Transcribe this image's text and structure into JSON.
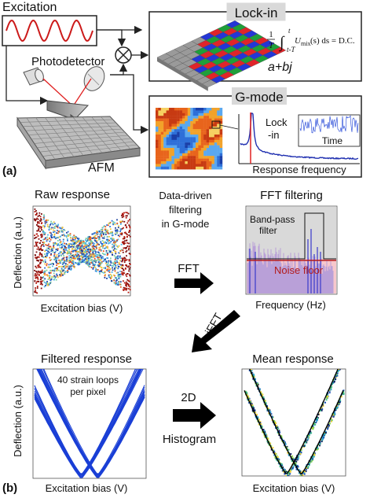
{
  "panel_a": {
    "label": "(a)",
    "excitation": "Excitation",
    "photodetector": "Photodetector",
    "mixer_symbol": "⊗",
    "afm": "AFM",
    "lockin": {
      "title": "Lock-in",
      "frac_num": "1",
      "frac_den": "T",
      "int_upper": "t",
      "int_lower": "t-T",
      "integrand": "U",
      "integrand_sub": "mix",
      "integrand_tail": "(s) ds = D.C.",
      "complex": "a+bj"
    },
    "gmode": {
      "title": "G-mode",
      "lockin_label_1": "Lock",
      "lockin_label_2": "-in",
      "time": "Time",
      "response_frequency": "Response frequency"
    }
  },
  "panel_b": {
    "label": "(b)",
    "raw": {
      "title": "Raw response",
      "xlabel": "Excitation bias (V)",
      "ylabel": "Deflection (a.u.)"
    },
    "center_text": [
      "Data-driven",
      "filtering",
      "in G-mode"
    ],
    "fft_arrow": "FFT",
    "ifft_arrow": "iFFT",
    "fft_filter": {
      "title": "FFT filtering",
      "bandpass_1": "Band-pass",
      "bandpass_2": "filter",
      "noise_floor": "Noise floor",
      "xlabel": "Frequency (Hz)"
    },
    "filtered": {
      "title": "Filtered response",
      "note_1": "40 strain loops",
      "note_2": "per pixel",
      "xlabel": "Excitation bias (V)",
      "ylabel": "Deflection (a.u.)"
    },
    "hist_arrow_1": "2D",
    "hist_arrow_2": "Histogram",
    "mean": {
      "title": "Mean response",
      "xlabel": "Excitation bias (V)"
    }
  },
  "colors": {
    "sine": "#cc1a1a",
    "laser": "#e02020",
    "loop_blue": "#1a3fd6",
    "noise_red": "#b31b1b",
    "spectrum_blue": "#3a3acc",
    "box_gray": "#d9d9d9",
    "pink_fill": "#f7c8cc",
    "purple_fill": "#c8a8d8"
  }
}
